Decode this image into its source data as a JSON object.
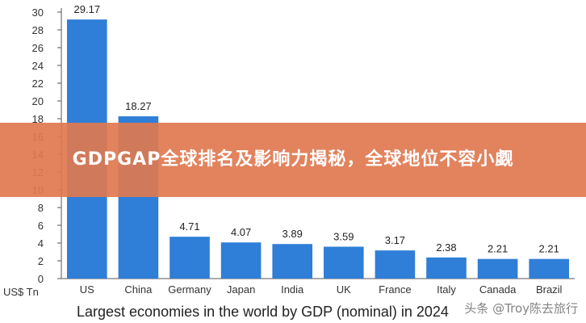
{
  "banner": {
    "title": "GDPGAP全球排名及影响力揭秘，全球地位不容小觑"
  },
  "watermark": {
    "text": "头条 @Troy陈去旅行"
  },
  "colors": {
    "bar": "#2f7ed8",
    "banner": "#df7850"
  },
  "chart_data": {
    "type": "bar",
    "title": "Largest economies in the world by GDP (nominal) in 2024",
    "xlabel": "",
    "ylabel": "US$ Tn",
    "categories": [
      "US",
      "China",
      "Germany",
      "Japan",
      "India",
      "UK",
      "France",
      "Italy",
      "Canada",
      "Brazil"
    ],
    "values": [
      29.17,
      18.27,
      4.71,
      4.07,
      3.89,
      3.59,
      3.17,
      2.38,
      2.21,
      2.21
    ],
    "value_labels": [
      "29.17",
      "18.27",
      "4.71",
      "4.07",
      "3.89",
      "3.59",
      "3.17",
      "2.38",
      "2.21",
      "2.21"
    ],
    "yticks": [
      0,
      2,
      4,
      6,
      8,
      10,
      12,
      14,
      16,
      18,
      20,
      22,
      24,
      26,
      28,
      30
    ],
    "ylim": [
      0,
      30
    ],
    "grid": false,
    "legend": "none"
  }
}
